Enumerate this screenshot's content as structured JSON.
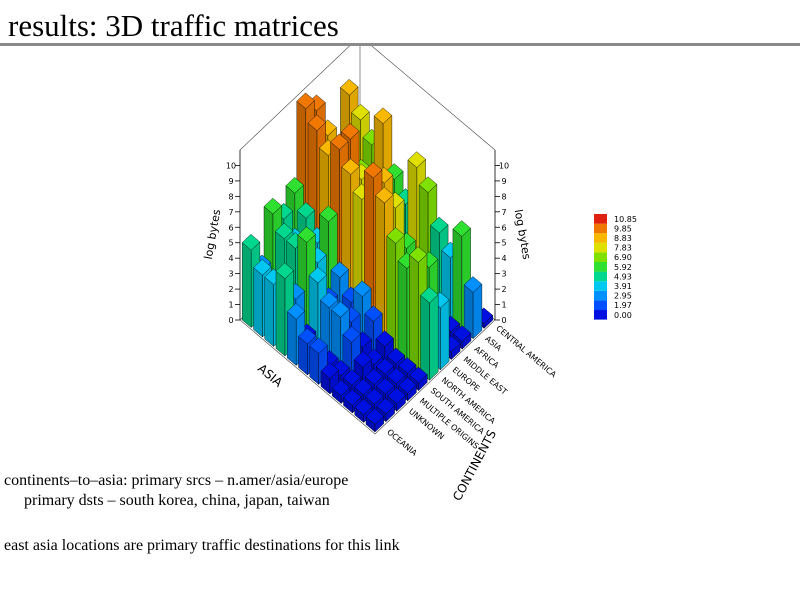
{
  "header": {
    "title": "results: 3D traffic matrices"
  },
  "notes": [
    "continents–to–asia: primary srcs – n.amer/asia/europe",
    "primary dsts – south korea, china, japan, taiwan",
    "east asia locations are primary traffic destinations for this link"
  ],
  "chart_data": {
    "type": "bar3d",
    "zlabel": "log bytes",
    "xlabel": "ASIA",
    "ylabel": "CONTINENTS",
    "rows": [
      "CENTRAL AMERICA",
      "ASIA",
      "AFRICA",
      "MIDDLE EAST",
      "EUROPE",
      "NORTH AMERICA",
      "SOUTH AMERICA",
      "MULTIPLE ORIGINS",
      "UNKNOWN",
      null,
      "OCEANIA"
    ],
    "columns": [
      null,
      null,
      null,
      null,
      null,
      null,
      null,
      null,
      null,
      null,
      null,
      null
    ],
    "values": [
      [
        3,
        2,
        1,
        0.5,
        0.5,
        0.3,
        2,
        1,
        0.5,
        0.3,
        0.3,
        0.3
      ],
      [
        9,
        8,
        7,
        9,
        6,
        5,
        8,
        7,
        5,
        4,
        6,
        3
      ],
      [
        5,
        4,
        3,
        6,
        2,
        1,
        3,
        2,
        1,
        0.5,
        0.5,
        0.5
      ],
      [
        6,
        5,
        4,
        7,
        3,
        2,
        4,
        3,
        2,
        1,
        0.5,
        0.5
      ],
      [
        10,
        9,
        8,
        10,
        8,
        7,
        9,
        8,
        6,
        5,
        6,
        4
      ],
      [
        10.8,
        10,
        9,
        10,
        9,
        8,
        10,
        9,
        7,
        6,
        7,
        5
      ],
      [
        6,
        5,
        4,
        6,
        3,
        2,
        3,
        2,
        1,
        0.5,
        0.5,
        0.5
      ],
      [
        5,
        4,
        3,
        4,
        2,
        1,
        2,
        1,
        0.5,
        0.5,
        0.5,
        0.5
      ],
      [
        6,
        5,
        5,
        6,
        4,
        3,
        3,
        2,
        1,
        0.5,
        0.5,
        0.5
      ],
      [
        3,
        2,
        2,
        3,
        1,
        0.5,
        0.5,
        0.5,
        0.5,
        0.5,
        0.5,
        0.5
      ],
      [
        5,
        4,
        4,
        5,
        3,
        2,
        2,
        1,
        0.5,
        0.5,
        0.5,
        0.5
      ]
    ],
    "zlim": [
      0,
      11
    ],
    "zticks": [
      0,
      1,
      2,
      3,
      4,
      5,
      6,
      7,
      8,
      9,
      10
    ],
    "colorbar": {
      "ticks": [
        {
          "value": 0,
          "label": "0.00"
        },
        {
          "value": 1.97,
          "label": "1.97"
        },
        {
          "value": 2.95,
          "label": "2.95"
        },
        {
          "value": 3.91,
          "label": "3.91"
        },
        {
          "value": 4.93,
          "label": "4.93"
        },
        {
          "value": 5.92,
          "label": "5.92"
        },
        {
          "value": 6.9,
          "label": "6.90"
        },
        {
          "value": 7.83,
          "label": "7.83"
        },
        {
          "value": 8.83,
          "label": "8.83"
        },
        {
          "value": 9.85,
          "label": "9.85"
        },
        {
          "value": 10.85,
          "label": "10.85"
        }
      ],
      "colors": [
        "#0010e0",
        "#0050ff",
        "#0090ff",
        "#00c8f0",
        "#00d890",
        "#30e030",
        "#80e000",
        "#e0e000",
        "#f8b800",
        "#f07800",
        "#e02010"
      ]
    }
  }
}
